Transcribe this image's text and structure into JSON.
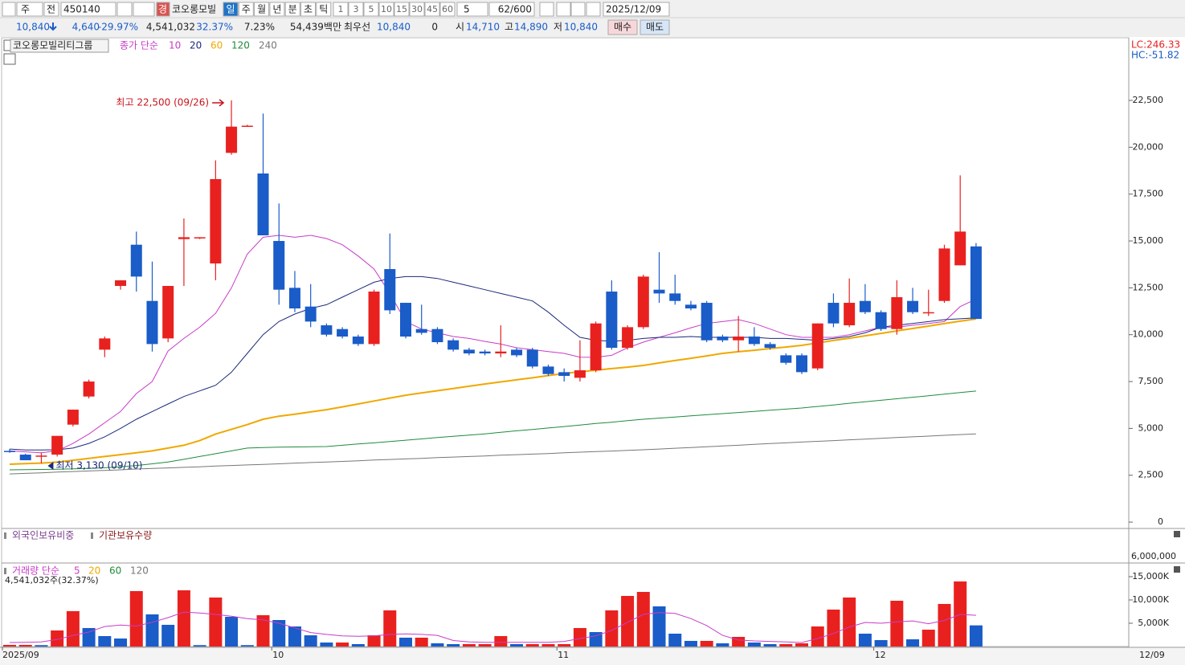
{
  "toolbar": {
    "period_type": "주",
    "prev": "전",
    "code": "450140",
    "badge": "경",
    "name": "코오롱모빌",
    "intervals": [
      "일",
      "주",
      "월",
      "년",
      "분",
      "초",
      "틱"
    ],
    "numbers": [
      "1",
      "3",
      "5",
      "10",
      "15",
      "30",
      "45",
      "60"
    ],
    "count_input": "5",
    "counter": "62/600",
    "date": "2025/12/09"
  },
  "quote": {
    "price": "10,840",
    "change": "4,640",
    "change_pct": "-29.97%",
    "volume": "4,541,032",
    "volume_pct": "32.37%",
    "turnover": "7.23%",
    "amount": "54,439백만",
    "best_label": "최우선",
    "best": "10,840",
    "best_qty": "0",
    "open_label": "시",
    "open": "14,710",
    "high_label": "고",
    "high": "14,890",
    "low_label": "저",
    "low": "10,840",
    "buy": "매수",
    "sell": "매도"
  },
  "chart_data": [
    {
      "type": "candlestick",
      "title": "코오롱모빌리티그룹",
      "ma_label": "종가 단순",
      "stats": [
        "LC:246.33",
        "HC:-51.82"
      ],
      "stats_colors": [
        "#e8211f",
        "#1a5cc8"
      ],
      "end_label": "12/09",
      "categories": [
        "2025/09",
        null,
        null,
        null,
        null,
        null,
        null,
        null,
        null,
        null,
        null,
        null,
        null,
        null,
        null,
        null,
        null,
        "10",
        null,
        null,
        null,
        null,
        null,
        null,
        null,
        null,
        null,
        null,
        null,
        null,
        null,
        null,
        null,
        null,
        null,
        "11",
        null,
        null,
        null,
        null,
        null,
        null,
        null,
        null,
        null,
        null,
        null,
        null,
        null,
        null,
        null,
        null,
        null,
        null,
        null,
        "12",
        null,
        null,
        null,
        null,
        null,
        null
      ],
      "open": [
        3800,
        3600,
        3500,
        3600,
        5200,
        6700,
        9200,
        12600,
        14800,
        11800,
        9800,
        15100,
        15150,
        13800,
        19700,
        21100,
        18600,
        15000,
        12500,
        11500,
        10500,
        10300,
        9900,
        9500,
        13500,
        11700,
        10300,
        10300,
        9700,
        9200,
        9100,
        9000,
        9200,
        9200,
        8300,
        8000,
        7700,
        8100,
        12300,
        9300,
        10400,
        12400,
        12200,
        11600,
        11700,
        9900,
        9700,
        9900,
        9500,
        8900,
        8900,
        8200,
        11700,
        10500,
        11800,
        11200,
        10300,
        11800,
        11200,
        11800,
        13700,
        14710
      ],
      "high": [
        3900,
        3650,
        3700,
        4600,
        6000,
        7600,
        9900,
        12900,
        15500,
        13900,
        12600,
        16200,
        15200,
        19300,
        22500,
        21200,
        21800,
        17000,
        13400,
        12700,
        10600,
        10400,
        10000,
        12400,
        15400,
        11700,
        11600,
        10400,
        9800,
        9300,
        9200,
        10500,
        9300,
        9300,
        8400,
        8200,
        9700,
        10700,
        12900,
        10500,
        13200,
        14400,
        13200,
        11800,
        11800,
        10000,
        11000,
        10400,
        9600,
        9000,
        9000,
        10600,
        12200,
        13000,
        12700,
        11300,
        12900,
        12500,
        12400,
        14800,
        18500,
        14890
      ],
      "low": [
        3700,
        3300,
        3130,
        3500,
        5100,
        6600,
        8800,
        12400,
        12300,
        9100,
        9600,
        12600,
        15100,
        12900,
        19600,
        21100,
        15300,
        11600,
        11200,
        10400,
        9900,
        9800,
        9400,
        9400,
        11100,
        9800,
        10000,
        9500,
        9100,
        8900,
        8900,
        8800,
        8800,
        8200,
        7800,
        7500,
        7500,
        8000,
        9200,
        9200,
        10300,
        11700,
        11600,
        11300,
        9600,
        9600,
        9100,
        9400,
        9200,
        8400,
        7900,
        8100,
        10400,
        10400,
        11100,
        10200,
        10000,
        11100,
        11000,
        11700,
        13700,
        10840
      ],
      "close": [
        3750,
        3300,
        3550,
        4600,
        6000,
        7500,
        9800,
        12900,
        13100,
        9500,
        12600,
        15200,
        15200,
        18300,
        21100,
        21150,
        15300,
        12400,
        11400,
        10700,
        10000,
        9900,
        9500,
        12300,
        11300,
        9900,
        10100,
        9600,
        9200,
        9000,
        9000,
        9100,
        8900,
        8300,
        7900,
        7800,
        8100,
        10600,
        9300,
        10400,
        13100,
        12200,
        11800,
        11400,
        9700,
        9700,
        9900,
        9500,
        9300,
        8500,
        8000,
        10600,
        10600,
        11700,
        11200,
        10300,
        12000,
        11200,
        11200,
        14600,
        15500,
        10840
      ],
      "up_color": "#e8211f",
      "down_color": "#1a5cc8",
      "series": [
        {
          "name": "10",
          "color": "#c83cc8",
          "values": [
            3800,
            3750,
            3700,
            3800,
            4200,
            4700,
            5300,
            5900,
            6860,
            7500,
            9130,
            9800,
            10400,
            11140,
            12500,
            14300,
            15200,
            15300,
            15200,
            15300,
            15130,
            14800,
            14200,
            13500,
            12200,
            10700,
            10300,
            10100,
            9900,
            9800,
            9640,
            9500,
            9300,
            9200,
            9100,
            9000,
            8800,
            8790,
            8900,
            9300,
            9600,
            9860,
            10100,
            10370,
            10600,
            10700,
            10800,
            10600,
            10300,
            10000,
            9860,
            9860,
            9860,
            10000,
            10200,
            10400,
            10400,
            10500,
            10600,
            10700,
            11500,
            11900
          ]
        },
        {
          "name": "20",
          "color": "#1c2a7a",
          "values": [
            3900,
            3850,
            3850,
            3860,
            3950,
            4200,
            4550,
            5000,
            5490,
            5900,
            6300,
            6700,
            7000,
            7300,
            8000,
            9000,
            10000,
            10700,
            11100,
            11400,
            11600,
            12000,
            12400,
            12800,
            13000,
            13100,
            13100,
            13000,
            12800,
            12600,
            12400,
            12200,
            12000,
            11800,
            11200,
            10500,
            9860,
            9700,
            9650,
            9700,
            9800,
            9860,
            9860,
            9900,
            9860,
            9860,
            9860,
            9860,
            9800,
            9800,
            9750,
            9700,
            9800,
            9900,
            10100,
            10400,
            10500,
            10600,
            10700,
            10800,
            10850,
            10900
          ]
        },
        {
          "name": "60",
          "color": "#f0a800",
          "values": [
            3090,
            3120,
            3150,
            3200,
            3300,
            3400,
            3500,
            3600,
            3700,
            3800,
            3950,
            4100,
            4350,
            4700,
            4950,
            5200,
            5490,
            5650,
            5760,
            5880,
            6000,
            6150,
            6300,
            6460,
            6620,
            6770,
            6890,
            7010,
            7130,
            7250,
            7370,
            7480,
            7590,
            7700,
            7820,
            7930,
            8020,
            8100,
            8190,
            8270,
            8360,
            8490,
            8620,
            8740,
            8870,
            9000,
            9090,
            9170,
            9260,
            9340,
            9430,
            9560,
            9690,
            9810,
            9940,
            10070,
            10200,
            10330,
            10460,
            10590,
            10720,
            10840
          ]
        },
        {
          "name": "120",
          "color": "#1e8c3a",
          "values": [
            2790,
            2800,
            2810,
            2820,
            2840,
            2860,
            2900,
            2950,
            3020,
            3110,
            3210,
            3350,
            3500,
            3650,
            3800,
            3950,
            3980,
            4000,
            4010,
            4020,
            4030,
            4100,
            4170,
            4230,
            4300,
            4370,
            4440,
            4510,
            4580,
            4640,
            4710,
            4790,
            4870,
            4940,
            5020,
            5100,
            5180,
            5260,
            5330,
            5410,
            5490,
            5550,
            5610,
            5670,
            5730,
            5790,
            5850,
            5910,
            5970,
            6030,
            6090,
            6170,
            6250,
            6340,
            6420,
            6500,
            6580,
            6660,
            6740,
            6830,
            6910,
            6990
          ]
        },
        {
          "name": "240",
          "color": "#777777",
          "values": [
            2570,
            2600,
            2630,
            2670,
            2700,
            2730,
            2760,
            2790,
            2830,
            2860,
            2890,
            2920,
            2950,
            2990,
            3020,
            3050,
            3080,
            3110,
            3150,
            3180,
            3210,
            3240,
            3270,
            3310,
            3340,
            3370,
            3400,
            3440,
            3470,
            3500,
            3530,
            3570,
            3600,
            3630,
            3660,
            3700,
            3730,
            3760,
            3790,
            3830,
            3860,
            3900,
            3940,
            3980,
            4020,
            4060,
            4100,
            4150,
            4190,
            4230,
            4270,
            4310,
            4350,
            4390,
            4430,
            4470,
            4510,
            4550,
            4590,
            4630,
            4670,
            4710
          ]
        }
      ],
      "annotations": [
        {
          "text": "최고 22,500 (09/26)",
          "index": 14,
          "at": "high",
          "color": "#c8141e"
        },
        {
          "text": "최저 3,130 (09/10)",
          "index": 2,
          "at": "low",
          "color": "#1c2a7a"
        }
      ],
      "ylim": [
        -340,
        25800
      ],
      "yticks": [
        0,
        {
          "value": 2500,
          "label": "2,500"
        },
        {
          "value": 5000,
          "label": "5,000"
        },
        {
          "value": 7500,
          "label": "7,500"
        },
        {
          "value": 10000,
          "label": "10,000"
        },
        {
          "value": 12500,
          "label": "12,500"
        },
        {
          "value": 15000,
          "label": "15,000"
        },
        {
          "value": 17500,
          "label": "17,500"
        },
        {
          "value": 20000,
          "label": "20,000"
        },
        {
          "value": 22500,
          "label": "22,500"
        }
      ]
    },
    {
      "type": "line",
      "legend": [
        {
          "name": "외국인보유비중",
          "color": "#7b3f8c"
        },
        {
          "name": "기관보유수량",
          "color": "#8b1a1a"
        }
      ],
      "yticks": [
        {
          "value": 6000000,
          "label": "6,000,000"
        }
      ]
    },
    {
      "type": "bar",
      "title": "거래량 단순",
      "caption": "4,541,032주(32.37%)",
      "up_color": "#e8211f",
      "down_color": "#1a5cc8",
      "values": [
        350,
        350,
        300,
        3450,
        7600,
        3970,
        2240,
        1720,
        11900,
        6900,
        4660,
        12070,
        300,
        10520,
        6380,
        300,
        6720,
        5690,
        4310,
        2410,
        860,
        860,
        520,
        2410,
        7760,
        1900,
        1900,
        690,
        520,
        520,
        520,
        2240,
        520,
        520,
        520,
        520,
        3970,
        3100,
        7760,
        10860,
        11720,
        8620,
        2760,
        1210,
        1210,
        690,
        2070,
        860,
        520,
        520,
        690,
        4310,
        7930,
        10520,
        2760,
        1380,
        9830,
        1550,
        3620,
        9140,
        13970,
        4541
      ],
      "series": [
        {
          "name": "5",
          "color": "#c83cc8",
          "values": [
            860,
            900,
            1000,
            1500,
            2400,
            3100,
            4300,
            4600,
            4400,
            5200,
            6200,
            7400,
            7200,
            6900,
            6500,
            6000,
            5700,
            5000,
            4000,
            3000,
            2600,
            2300,
            2200,
            2300,
            2600,
            2700,
            2600,
            2400,
            1300,
            1000,
            900,
            900,
            900,
            900,
            900,
            1100,
            1700,
            2300,
            3450,
            5200,
            6900,
            7300,
            7100,
            6000,
            4500,
            2400,
            1400,
            1200,
            1100,
            1000,
            860,
            1700,
            2800,
            4200,
            5170,
            5000,
            5300,
            5500,
            4900,
            5600,
            6900,
            6700
          ]
        },
        {
          "name": "20",
          "color": "#f0a800"
        },
        {
          "name": "60",
          "color": "#1e8c3a"
        },
        {
          "name": "120",
          "color": "#777777"
        }
      ],
      "ylim": [
        0,
        17240
      ],
      "yticks": [
        {
          "value": 5000,
          "label": "5,000K"
        },
        {
          "value": 10000,
          "label": "10,000K"
        },
        {
          "value": 15000,
          "label": "15,000K"
        }
      ]
    }
  ]
}
